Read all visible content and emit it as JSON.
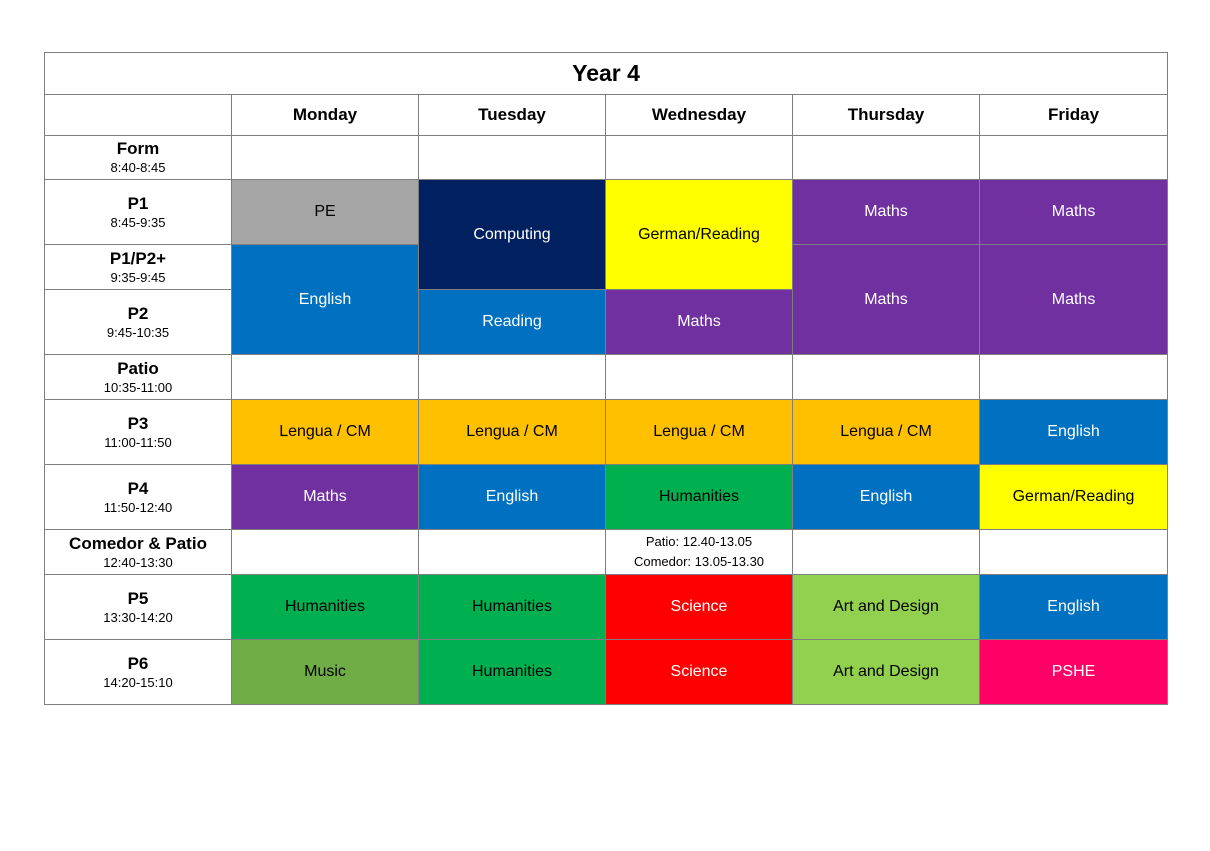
{
  "title": "Year 4",
  "days": [
    "Monday",
    "Tuesday",
    "Wednesday",
    "Thursday",
    "Friday"
  ],
  "periods": [
    {
      "label": "Form",
      "time": "8:40-8:45"
    },
    {
      "label": "P1",
      "time": "8:45-9:35"
    },
    {
      "label": "P1/P2+",
      "time": "9:35-9:45"
    },
    {
      "label": "P2",
      "time": "9:45-10:35"
    },
    {
      "label": "Patio",
      "time": "10:35-11:00"
    },
    {
      "label": "P3",
      "time": "11:00-11:50"
    },
    {
      "label": "P4",
      "time": "11:50-12:40"
    },
    {
      "label": "Comedor & Patio",
      "time": "12:40-13:30"
    },
    {
      "label": "P5",
      "time": "13:30-14:20"
    },
    {
      "label": "P6",
      "time": "14:20-15:10"
    }
  ],
  "schedule": [
    [
      {
        "subject": "",
        "span": 1
      },
      {
        "subject": "PE",
        "color": "#a5a5a5",
        "text": "#000000",
        "span": 1
      },
      {
        "subject": "English",
        "color": "#0070c0",
        "text": "#ffffff",
        "span": 2
      },
      {
        "subject": "",
        "span": 1
      },
      {
        "subject": "Lengua / CM",
        "color": "#ffc000",
        "text": "#000000",
        "span": 1
      },
      {
        "subject": "Maths",
        "color": "#7030a0",
        "text": "#ffffff",
        "span": 1
      },
      {
        "subject": "",
        "span": 1
      },
      {
        "subject": "Humanities",
        "color": "#00b050",
        "text": "#000000",
        "span": 1
      },
      {
        "subject": "Music",
        "color": "#70ad47",
        "text": "#000000",
        "span": 1
      }
    ],
    [
      {
        "subject": "",
        "span": 1
      },
      {
        "subject": "Computing",
        "color": "#002060",
        "text": "#ffffff",
        "span": 2
      },
      {
        "subject": "Reading",
        "color": "#0070c0",
        "text": "#ffffff",
        "span": 1
      },
      {
        "subject": "",
        "span": 1
      },
      {
        "subject": "Lengua / CM",
        "color": "#ffc000",
        "text": "#000000",
        "span": 1
      },
      {
        "subject": "English",
        "color": "#0070c0",
        "text": "#ffffff",
        "span": 1
      },
      {
        "subject": "",
        "span": 1
      },
      {
        "subject": "Humanities",
        "color": "#00b050",
        "text": "#000000",
        "span": 1
      },
      {
        "subject": "Humanities",
        "color": "#00b050",
        "text": "#000000",
        "span": 1
      }
    ],
    [
      {
        "subject": "",
        "span": 1
      },
      {
        "subject": "German/Reading",
        "color": "#ffff00",
        "text": "#000000",
        "span": 2
      },
      {
        "subject": "Maths",
        "color": "#7030a0",
        "text": "#ffffff",
        "span": 1
      },
      {
        "subject": "",
        "span": 1
      },
      {
        "subject": "Lengua / CM",
        "color": "#ffc000",
        "text": "#000000",
        "span": 1
      },
      {
        "subject": "Humanities",
        "color": "#00b050",
        "text": "#000000",
        "span": 1
      },
      {
        "subject": "",
        "span": 1,
        "notes": [
          "Patio: 12.40-13.05",
          "Comedor: 13.05-13.30"
        ]
      },
      {
        "subject": "Science",
        "color": "#ff0000",
        "text": "#ffffff",
        "span": 1
      },
      {
        "subject": "Science",
        "color": "#ff0000",
        "text": "#ffffff",
        "span": 1
      }
    ],
    [
      {
        "subject": "",
        "span": 1
      },
      {
        "subject": "Maths",
        "color": "#7030a0",
        "text": "#ffffff",
        "span": 1
      },
      {
        "subject": "Maths",
        "color": "#7030a0",
        "text": "#ffffff",
        "span": 2
      },
      {
        "subject": "",
        "span": 1
      },
      {
        "subject": "Lengua / CM",
        "color": "#ffc000",
        "text": "#000000",
        "span": 1
      },
      {
        "subject": "English",
        "color": "#0070c0",
        "text": "#ffffff",
        "span": 1
      },
      {
        "subject": "",
        "span": 1
      },
      {
        "subject": "Art and Design",
        "color": "#92d050",
        "text": "#000000",
        "span": 1
      },
      {
        "subject": "Art and Design",
        "color": "#92d050",
        "text": "#000000",
        "span": 1
      }
    ],
    [
      {
        "subject": "",
        "span": 1
      },
      {
        "subject": "Maths",
        "color": "#7030a0",
        "text": "#ffffff",
        "span": 1
      },
      {
        "subject": "Maths",
        "color": "#7030a0",
        "text": "#ffffff",
        "span": 2
      },
      {
        "subject": "",
        "span": 1
      },
      {
        "subject": "English",
        "color": "#0070c0",
        "text": "#ffffff",
        "span": 1
      },
      {
        "subject": "German/Reading",
        "color": "#ffff00",
        "text": "#000000",
        "span": 1
      },
      {
        "subject": "",
        "span": 1
      },
      {
        "subject": "English",
        "color": "#0070c0",
        "text": "#ffffff",
        "span": 1
      },
      {
        "subject": "PSHE",
        "color": "#ff0066",
        "text": "#ffffff",
        "span": 1
      }
    ]
  ]
}
